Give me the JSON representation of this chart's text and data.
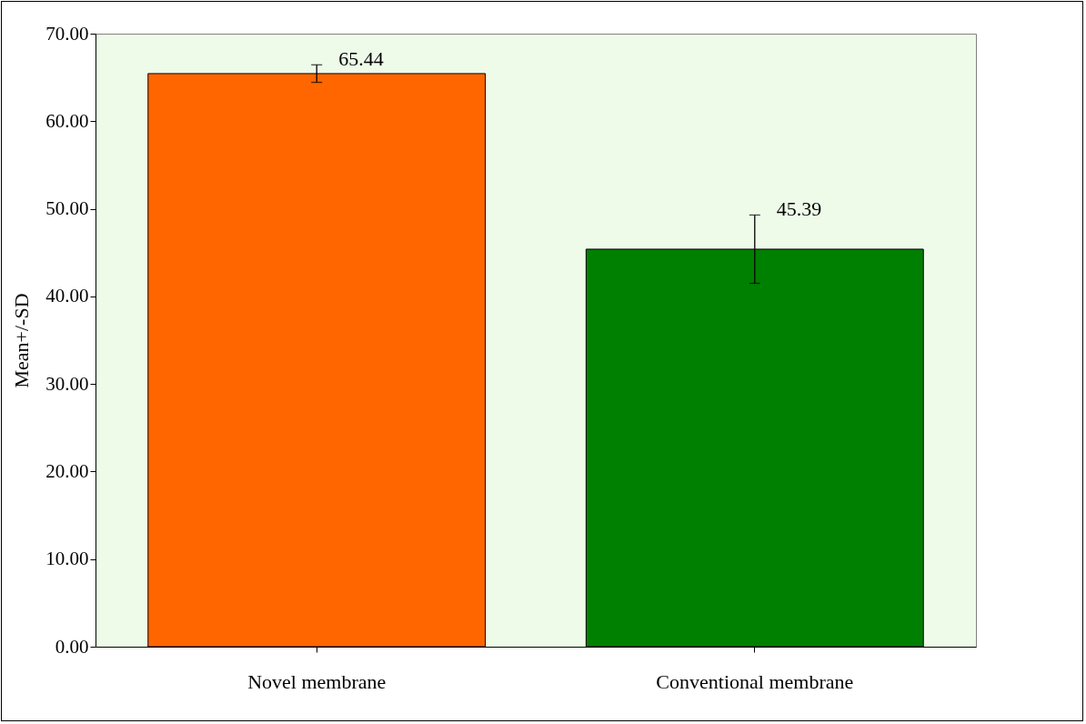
{
  "chart_data": {
    "type": "bar",
    "ylabel": "Mean+/-SD",
    "categories": [
      "Novel membrane",
      "Conventional membrane"
    ],
    "values": [
      65.44,
      45.39
    ],
    "colors": [
      "#ff6600",
      "#008000"
    ],
    "errors": [
      1.0,
      3.9
    ],
    "data_labels": true,
    "ylim": [
      0,
      70
    ],
    "yticks": [
      {
        "value": 0,
        "label": "0.00"
      },
      {
        "value": 10,
        "label": "10.00"
      },
      {
        "value": 20,
        "label": "20.00"
      },
      {
        "value": 30,
        "label": "30.00"
      },
      {
        "value": 40,
        "label": "40.00"
      },
      {
        "value": 50,
        "label": "50.00"
      },
      {
        "value": 60,
        "label": "60.00"
      },
      {
        "value": 70,
        "label": "70.00"
      }
    ],
    "grid": false
  }
}
